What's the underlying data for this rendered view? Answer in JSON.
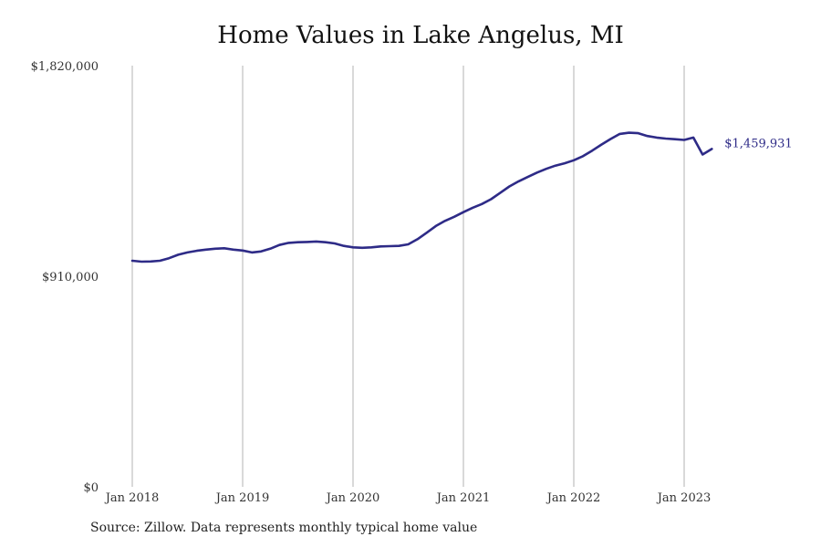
{
  "chart_data": {
    "type": "line",
    "title": "Home Values in Lake Angelus, MI",
    "source": "Source: Zillow. Data represents monthly typical home value",
    "ylim": [
      0,
      1820000
    ],
    "yticks": [
      {
        "value": 0,
        "label": "$0"
      },
      {
        "value": 910000,
        "label": "$910,000"
      },
      {
        "value": 1820000,
        "label": "$1,820,000"
      }
    ],
    "xticks": [
      {
        "value": "2018-01",
        "label": "Jan 2018"
      },
      {
        "value": "2019-01",
        "label": "Jan 2019"
      },
      {
        "value": "2020-01",
        "label": "Jan 2020"
      },
      {
        "value": "2021-01",
        "label": "Jan 2021"
      },
      {
        "value": "2022-01",
        "label": "Jan 2022"
      },
      {
        "value": "2023-01",
        "label": "Jan 2023"
      }
    ],
    "x_range": [
      "2018-01",
      "2024-01"
    ],
    "grid": "vertical",
    "line_color": "#2e2b87",
    "end_label": "$1,459,931",
    "series": [
      {
        "x": [
          "2018-01",
          "2018-02",
          "2018-03",
          "2018-04",
          "2018-05",
          "2018-06",
          "2018-07",
          "2018-08",
          "2018-09",
          "2018-10",
          "2018-11",
          "2018-12",
          "2019-01",
          "2019-02",
          "2019-03",
          "2019-04",
          "2019-05",
          "2019-06",
          "2019-07",
          "2019-08",
          "2019-09",
          "2019-10",
          "2019-11",
          "2019-12",
          "2020-01",
          "2020-02",
          "2020-03",
          "2020-04",
          "2020-05",
          "2020-06",
          "2020-07",
          "2020-08",
          "2020-09",
          "2020-10",
          "2020-11",
          "2020-12",
          "2021-01",
          "2021-02",
          "2021-03",
          "2021-04",
          "2021-05",
          "2021-06",
          "2021-07",
          "2021-08",
          "2021-09",
          "2021-10",
          "2021-11",
          "2021-12",
          "2022-01",
          "2022-02",
          "2022-03",
          "2022-04",
          "2022-05",
          "2022-06",
          "2022-07",
          "2022-08",
          "2022-09",
          "2022-10",
          "2022-11",
          "2022-12",
          "2023-01",
          "2023-02",
          "2023-03",
          "2023-04"
        ],
        "y": [
          977000,
          973000,
          974000,
          977000,
          988000,
          1003000,
          1013000,
          1020000,
          1025000,
          1029000,
          1031000,
          1025000,
          1021000,
          1013000,
          1017000,
          1029000,
          1045000,
          1054000,
          1057000,
          1058000,
          1060000,
          1057000,
          1052000,
          1041000,
          1035000,
          1033000,
          1035000,
          1039000,
          1040000,
          1041000,
          1048000,
          1070000,
          1098000,
          1127000,
          1149000,
          1167000,
          1187000,
          1206000,
          1222000,
          1243000,
          1270000,
          1298000,
          1320000,
          1339000,
          1358000,
          1374000,
          1388000,
          1398000,
          1411000,
          1429000,
          1453000,
          1479000,
          1503000,
          1525000,
          1530000,
          1528000,
          1516000,
          1509000,
          1505000,
          1502000,
          1499000,
          1509000,
          1436000,
          1459931
        ]
      }
    ]
  }
}
